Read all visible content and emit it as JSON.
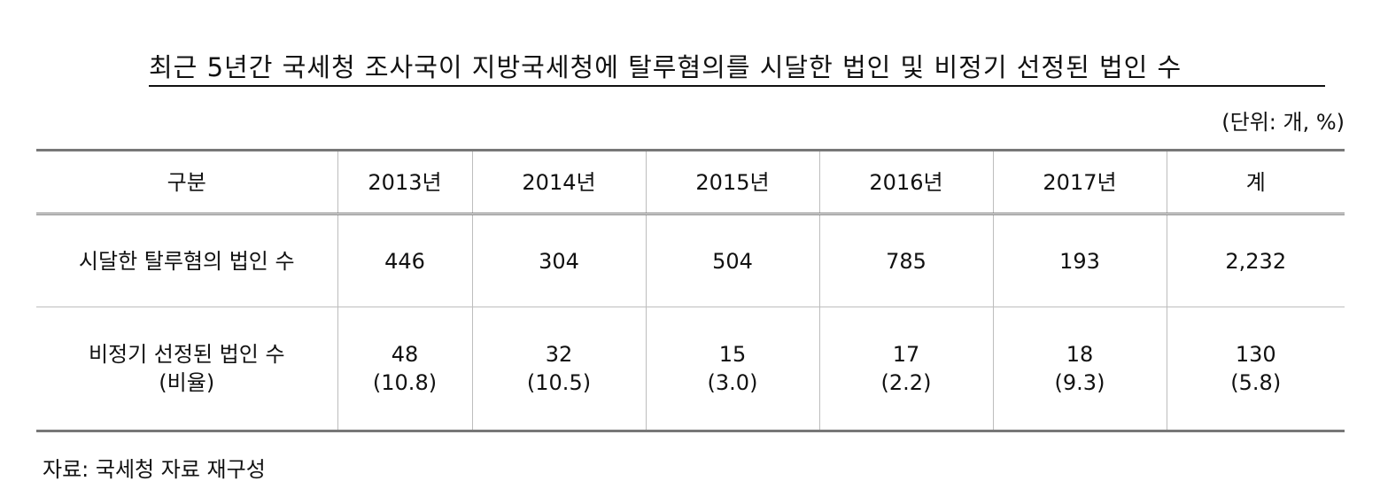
{
  "title": "최근 5년간 국세청 조사국이 지방국세청에 탈루혐의를 시달한 법인 및 비정기 선정된 법인 수",
  "unit": "(단위: 개, %)",
  "table": {
    "headers": [
      "구분",
      "2013년",
      "2014년",
      "2015년",
      "2016년",
      "2017년",
      "계"
    ],
    "rows": [
      {
        "label": "시달한 탈루혐의 법인 수",
        "cells": [
          "446",
          "304",
          "504",
          "785",
          "193",
          "2,232"
        ]
      },
      {
        "label_line1": "비정기 선정된 법인 수",
        "label_line2": "(비율)",
        "cells": [
          {
            "count": "48",
            "ratio": "(10.8)"
          },
          {
            "count": "32",
            "ratio": "(10.5)"
          },
          {
            "count": "15",
            "ratio": "(3.0)"
          },
          {
            "count": "17",
            "ratio": "(2.2)"
          },
          {
            "count": "18",
            "ratio": "(9.3)"
          },
          {
            "count": "130",
            "ratio": "(5.8)"
          }
        ]
      }
    ]
  },
  "source": "자료: 국세청 자료 재구성"
}
